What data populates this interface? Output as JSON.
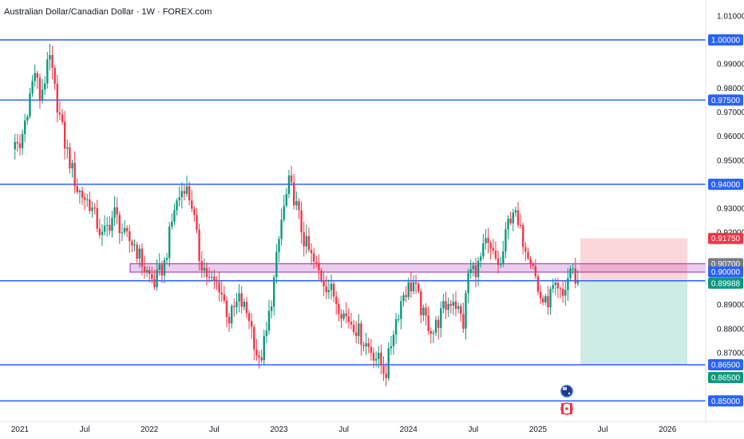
{
  "title": "Australian Dollar/Canadian Dollar · 1W · FOREX.com",
  "chart_data": {
    "type": "candlestick",
    "symbol": "Australian Dollar/Canadian Dollar",
    "interval": "1W",
    "source": "FOREX.com",
    "ylim": [
      0.848,
      1.013
    ],
    "y_ticks": [
      "1.01000",
      "0.99000",
      "0.98000",
      "0.97000",
      "0.96000",
      "0.95000",
      "0.93000",
      "0.92000",
      "0.89000",
      "0.88000",
      "0.87000"
    ],
    "x_ticks": [
      {
        "label": "2021",
        "week": 0
      },
      {
        "label": "Jul",
        "week": 26
      },
      {
        "label": "2022",
        "week": 52
      },
      {
        "label": "Jul",
        "week": 78
      },
      {
        "label": "2023",
        "week": 104
      },
      {
        "label": "Jul",
        "week": 130
      },
      {
        "label": "2024",
        "week": 156
      },
      {
        "label": "Jul",
        "week": 182
      },
      {
        "label": "2025",
        "week": 208
      },
      {
        "label": "Jul",
        "week": 234
      },
      {
        "label": "2026",
        "week": 260
      }
    ],
    "week_range": [
      -3,
      281
    ],
    "horizontal_levels": [
      {
        "value": 1.0,
        "label": "1.00000"
      },
      {
        "value": 0.975,
        "label": "0.97500"
      },
      {
        "value": 0.94,
        "label": "0.94000"
      },
      {
        "value": 0.8999,
        "label": "0.89988"
      },
      {
        "value": 0.865,
        "label": "0.86500"
      },
      {
        "value": 0.85,
        "label": "0.85000"
      }
    ],
    "zone": {
      "from": 0.9035,
      "to": 0.907
    },
    "position": {
      "type": "short",
      "entry": 0.9,
      "stop": 0.9175,
      "target": 0.865,
      "start_week": 225,
      "end_week": 268
    },
    "price_tags": [
      {
        "label": "1.00000",
        "value": 1.0,
        "color": "#2962ff"
      },
      {
        "label": "0.97500",
        "value": 0.975,
        "color": "#2962ff"
      },
      {
        "label": "0.94000",
        "value": 0.94,
        "color": "#2962ff"
      },
      {
        "label": "0.91750",
        "value": 0.9175,
        "color": "#f23645"
      },
      {
        "label": "0.90700",
        "value": 0.907,
        "color": "#787b86"
      },
      {
        "label": "0.90000",
        "value": 0.9,
        "color": "#2962ff"
      },
      {
        "label": "0.89988",
        "value": 0.8999,
        "color": "#089981"
      },
      {
        "label": "0.86500",
        "value": 0.865,
        "color": "#2962ff"
      },
      {
        "label": "0.86500",
        "value": 0.865,
        "color": "#089981",
        "offset": 1
      },
      {
        "label": "0.85000",
        "value": 0.85,
        "color": "#2962ff"
      }
    ],
    "anchors": [
      [
        0,
        0.955
      ],
      [
        3,
        0.972
      ],
      [
        6,
        0.987
      ],
      [
        8,
        0.976
      ],
      [
        12,
        0.992
      ],
      [
        14,
        0.979
      ],
      [
        18,
        0.957
      ],
      [
        23,
        0.938
      ],
      [
        28,
        0.932
      ],
      [
        33,
        0.918
      ],
      [
        38,
        0.928
      ],
      [
        42,
        0.918
      ],
      [
        46,
        0.915
      ],
      [
        50,
        0.905
      ],
      [
        54,
        0.899
      ],
      [
        58,
        0.907
      ],
      [
        62,
        0.93
      ],
      [
        66,
        0.94
      ],
      [
        69,
        0.932
      ],
      [
        72,
        0.91
      ],
      [
        76,
        0.9
      ],
      [
        80,
        0.898
      ],
      [
        84,
        0.884
      ],
      [
        88,
        0.892
      ],
      [
        92,
        0.885
      ],
      [
        96,
        0.865
      ],
      [
        99,
        0.878
      ],
      [
        102,
        0.9
      ],
      [
        105,
        0.925
      ],
      [
        108,
        0.94
      ],
      [
        110,
        0.935
      ],
      [
        114,
        0.917
      ],
      [
        118,
        0.907
      ],
      [
        122,
        0.9
      ],
      [
        126,
        0.894
      ],
      [
        130,
        0.886
      ],
      [
        134,
        0.882
      ],
      [
        138,
        0.875
      ],
      [
        142,
        0.87
      ],
      [
        145,
        0.865
      ],
      [
        147,
        0.862
      ],
      [
        150,
        0.88
      ],
      [
        154,
        0.895
      ],
      [
        158,
        0.899
      ],
      [
        162,
        0.885
      ],
      [
        166,
        0.879
      ],
      [
        170,
        0.888
      ],
      [
        174,
        0.893
      ],
      [
        178,
        0.882
      ],
      [
        180,
        0.903
      ],
      [
        184,
        0.906
      ],
      [
        187,
        0.915
      ],
      [
        190,
        0.91
      ],
      [
        193,
        0.906
      ],
      [
        196,
        0.924
      ],
      [
        198,
        0.93
      ],
      [
        200,
        0.922
      ],
      [
        203,
        0.915
      ],
      [
        206,
        0.908
      ],
      [
        208,
        0.895
      ],
      [
        211,
        0.89
      ],
      [
        214,
        0.896
      ],
      [
        218,
        0.893
      ],
      [
        221,
        0.905
      ],
      [
        224,
        0.899
      ]
    ]
  }
}
